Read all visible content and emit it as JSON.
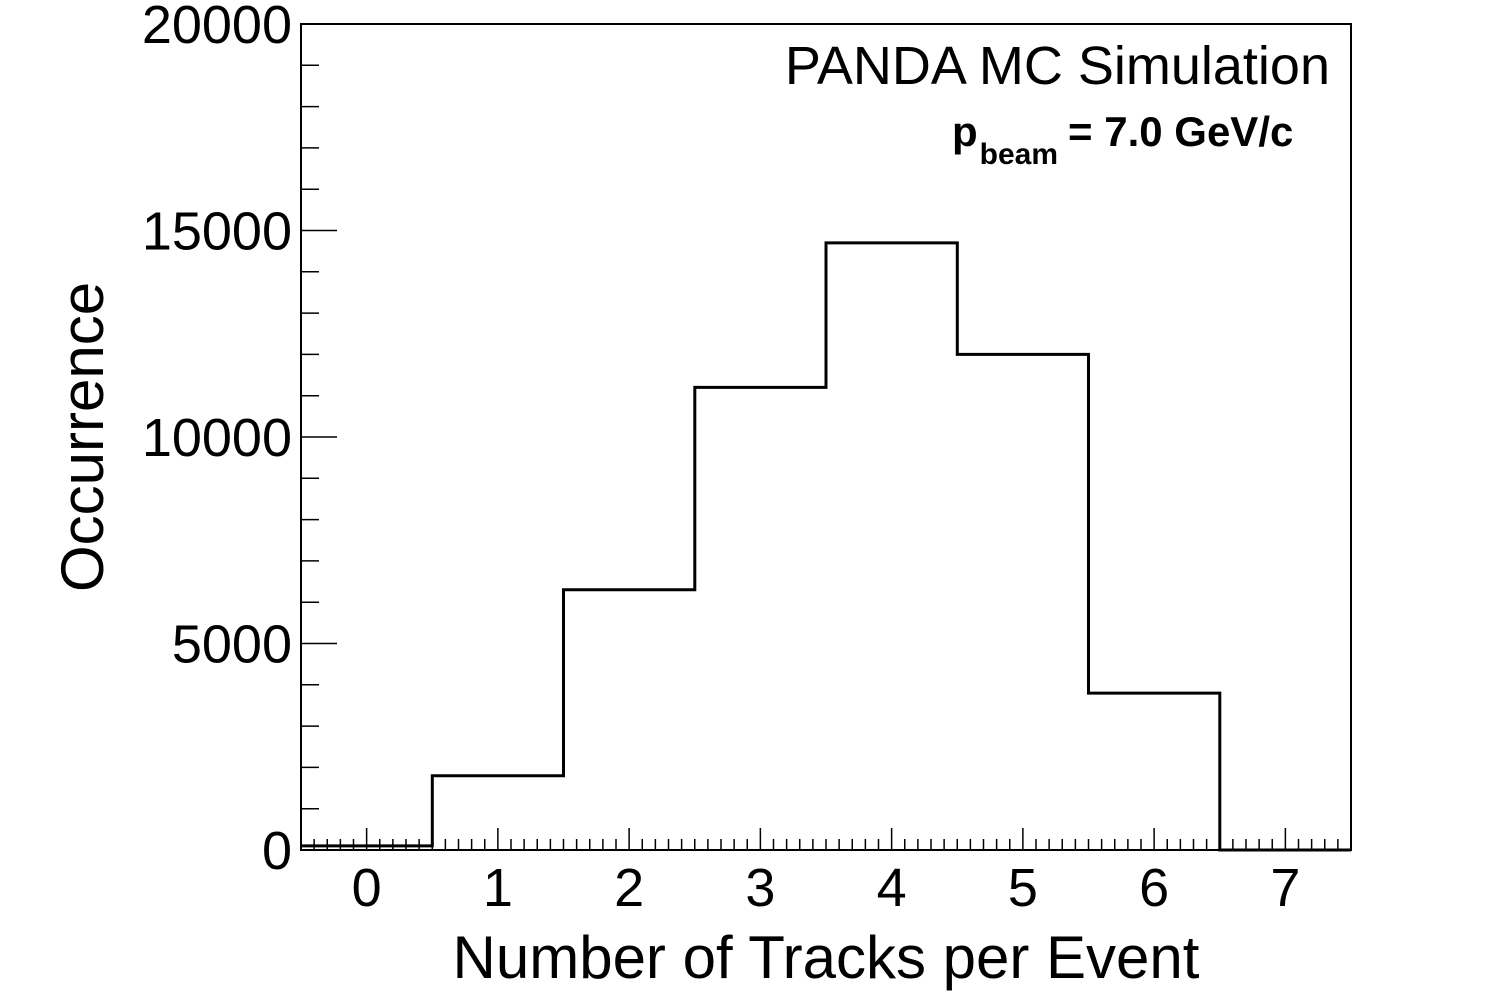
{
  "chart_data": {
    "type": "bar",
    "style": "step-histogram",
    "categories": [
      "0",
      "1",
      "2",
      "3",
      "4",
      "5",
      "6",
      "7"
    ],
    "x": [
      0,
      1,
      2,
      3,
      4,
      5,
      6,
      7
    ],
    "values": [
      100,
      1800,
      6300,
      11200,
      14700,
      12000,
      3800,
      0
    ],
    "xlabel": "Number of Tracks per Event",
    "ylabel": "Occurrence",
    "xlim": [
      -0.5,
      7.5
    ],
    "ylim": [
      0,
      20000
    ],
    "y_ticks": [
      "0",
      "5000",
      "10000",
      "15000",
      "20000"
    ],
    "x_ticks": [
      "0",
      "1",
      "2",
      "3",
      "4",
      "5",
      "6",
      "7"
    ],
    "annotations": {
      "title": "PANDA MC Simulation",
      "beam_p": "p",
      "beam_sub": "beam",
      "beam_value": "= 7.0 GeV/c"
    },
    "grid": false,
    "line_color": "#000000"
  }
}
